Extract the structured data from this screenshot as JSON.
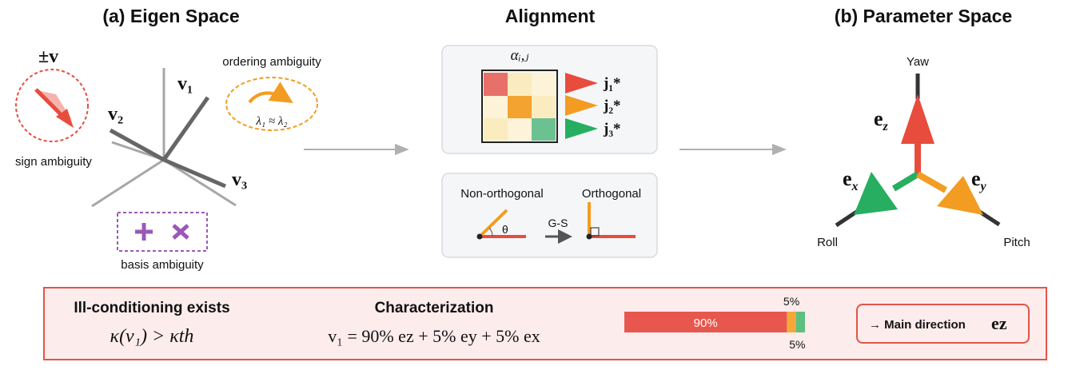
{
  "titles": {
    "eigen": "(a) Eigen Space",
    "alignment": "Alignment",
    "parameter": "(b) Parameter Space"
  },
  "eigen_space": {
    "sign_symbol": "±v",
    "sign_label": "sign ambiguity",
    "ordering_label": "ordering ambiguity",
    "ordering_math": "λ₁ ≈ λ₂",
    "basis_label": "basis ambiguity",
    "vectors": [
      "v₁",
      "v₂",
      "v₃"
    ]
  },
  "alignment": {
    "matrix_label": "αᵢ,ⱼ",
    "targets": [
      "j₁*",
      "j₂*",
      "j₃*"
    ],
    "non_orthogonal": "Non-orthogonal",
    "orthogonal": "Orthogonal",
    "gs": "G-S",
    "theta": "θ"
  },
  "parameter_space": {
    "axes": {
      "yaw": "Yaw",
      "roll": "Roll",
      "pitch": "Pitch"
    },
    "ez": "e",
    "ez_sub": "z",
    "ex": "e",
    "ex_sub": "x",
    "ey": "e",
    "ey_sub": "y"
  },
  "bottom": {
    "ill_title": "Ill-conditioning exists",
    "ill_math": "κ(v₁) > κth",
    "char_title": "Characterization",
    "char_math": "v₁ = 90% ez  +  5% ey  +  5% ex",
    "main_direction": "→ Main direction",
    "main_direction_vec": "ez"
  },
  "chart_data": {
    "type": "bar",
    "orientation": "horizontal-stacked",
    "segments": [
      {
        "name": "ez",
        "value": 90,
        "label": "90%",
        "color": "#e8574d"
      },
      {
        "name": "ey",
        "value": 5,
        "label": "5%",
        "color": "#f5a83a"
      },
      {
        "name": "ex",
        "value": 5,
        "label": "5%",
        "color": "#5fbf7f"
      }
    ]
  },
  "colors": {
    "red": "#e84c3d",
    "orange": "#f39c22",
    "green": "#27ae60",
    "purple": "#9b59b6",
    "panel": "#f5f6f8",
    "bottom_bg": "#fdecec",
    "bottom_border": "#e05548"
  }
}
